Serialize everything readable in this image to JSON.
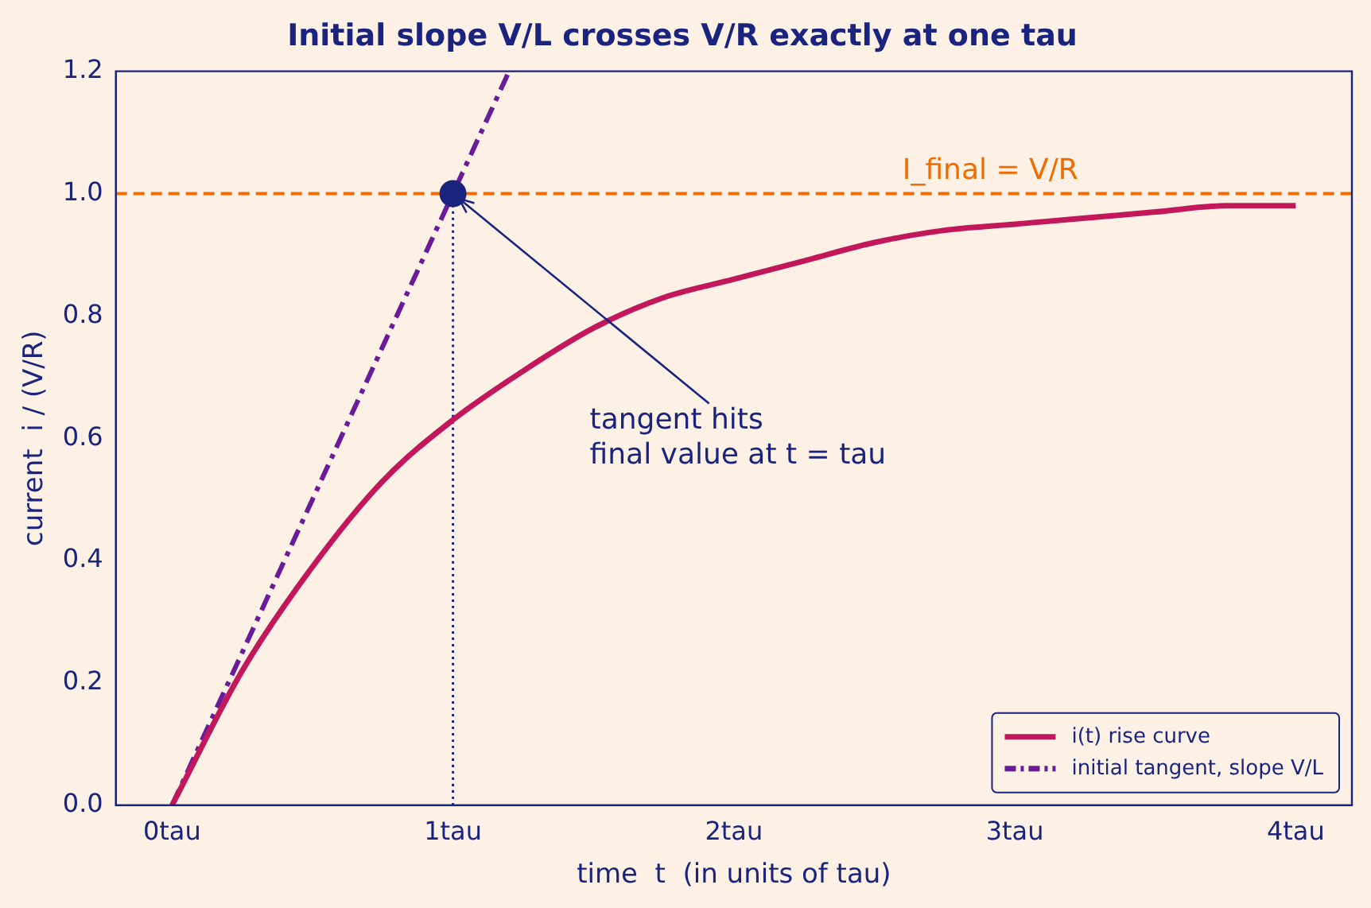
{
  "chart_data": {
    "type": "line",
    "title": "Initial slope V/L crosses V/R exactly at one tau",
    "xlabel": "time  t  (in units of tau)",
    "ylabel": "current  i / (V/R)",
    "xlim": [
      -0.2,
      4.2
    ],
    "ylim": [
      0,
      1.2
    ],
    "xticks": [
      {
        "value": 0,
        "label": "0tau"
      },
      {
        "value": 1,
        "label": "1tau"
      },
      {
        "value": 2,
        "label": "2tau"
      },
      {
        "value": 3,
        "label": "3tau"
      },
      {
        "value": 4,
        "label": "4tau"
      }
    ],
    "yticks": [
      {
        "value": 0,
        "label": "0.0"
      },
      {
        "value": 0.2,
        "label": "0.2"
      },
      {
        "value": 0.4,
        "label": "0.4"
      },
      {
        "value": 0.6,
        "label": "0.6"
      },
      {
        "value": 0.8,
        "label": "0.8"
      },
      {
        "value": 1,
        "label": "1.0"
      },
      {
        "value": 1.2,
        "label": "1.2"
      }
    ],
    "grid": false,
    "legend": "bottom right",
    "series": [
      {
        "name": "i(t) rise curve",
        "color": "#c2185b",
        "line_style": "solid",
        "x": [
          0,
          0.25,
          0.5,
          0.75,
          1,
          1.25,
          1.5,
          1.75,
          2,
          2.25,
          2.5,
          2.75,
          3,
          3.25,
          3.5,
          3.75,
          4
        ],
        "values": [
          0,
          0.22,
          0.39,
          0.53,
          0.63,
          0.71,
          0.78,
          0.83,
          0.86,
          0.89,
          0.92,
          0.94,
          0.95,
          0.96,
          0.97,
          0.98,
          0.98
        ]
      },
      {
        "name": "initial tangent, slope V/L",
        "color": "#6a1b9a",
        "line_style": "dashed",
        "x": [
          0,
          1.2
        ],
        "values": [
          0,
          1.2
        ]
      },
      {
        "color": "#1a237e",
        "line_style": "dotted",
        "x": [
          1,
          1
        ],
        "values": [
          0,
          1
        ]
      },
      {
        "type": "scatter",
        "color": "#1a237e",
        "marker": "circle",
        "x": [
          1
        ],
        "values": [
          1
        ]
      }
    ],
    "ref_lines": [
      {
        "axis": "y",
        "value": 1.0,
        "label": "I_final = V/R",
        "color": "#ef6c00",
        "line_style": "dashed"
      }
    ],
    "annotations": [
      {
        "text": "tangent hits\nfinal value at t = tau",
        "x": 1,
        "y": 1
      }
    ]
  }
}
